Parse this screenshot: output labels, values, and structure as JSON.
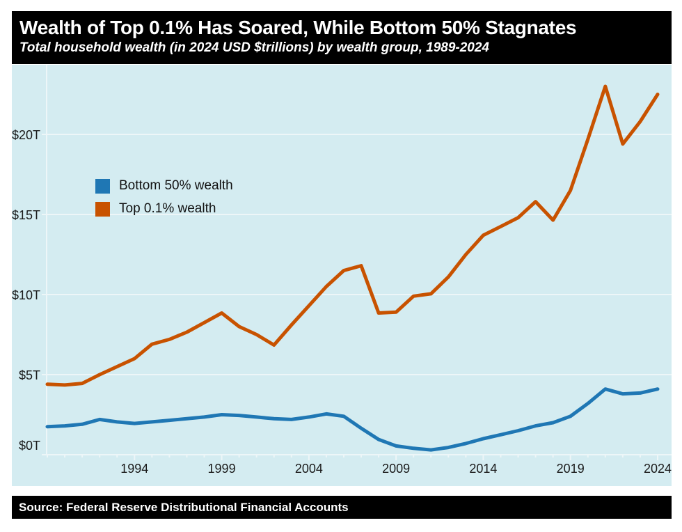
{
  "header": {
    "title": "Wealth of Top 0.1% Has Soared, While Bottom 50% Stagnates",
    "subtitle": "Total household wealth (in 2024 USD $trillions) by wealth group, 1989-2024"
  },
  "footer": {
    "source": "Source: Federal Reserve Distributional Financial Accounts"
  },
  "colors": {
    "header_bg": "#000000",
    "header_text": "#ffffff",
    "plot_bg": "#d4ecf1",
    "gridline": "#edf6f8",
    "tick_text": "#1a1a1a"
  },
  "chart_data": {
    "type": "line",
    "title": "Wealth of Top 0.1% Has Soared, While Bottom 50% Stagnates",
    "subtitle": "Total household wealth (in 2024 USD $trillions) by wealth group, 1989-2024",
    "x": [
      1989,
      1990,
      1991,
      1992,
      1993,
      1994,
      1995,
      1996,
      1997,
      1998,
      1999,
      2000,
      2001,
      2002,
      2003,
      2004,
      2005,
      2006,
      2007,
      2008,
      2009,
      2010,
      2011,
      2012,
      2013,
      2014,
      2015,
      2016,
      2017,
      2018,
      2019,
      2020,
      2021,
      2022,
      2023,
      2024
    ],
    "series": [
      {
        "name": "Bottom 50% wealth",
        "color": "#1f77b4",
        "values": [
          1.75,
          1.8,
          1.9,
          2.2,
          2.05,
          1.95,
          2.05,
          2.15,
          2.25,
          2.35,
          2.5,
          2.45,
          2.35,
          2.25,
          2.2,
          2.35,
          2.55,
          2.4,
          1.65,
          0.95,
          0.55,
          0.4,
          0.3,
          0.45,
          0.7,
          1.0,
          1.25,
          1.5,
          1.8,
          2.0,
          2.4,
          3.2,
          4.1,
          3.8,
          3.85,
          4.1
        ]
      },
      {
        "name": "Top 0.1% wealth",
        "color": "#c85200",
        "values": [
          4.4,
          4.35,
          4.45,
          5.0,
          5.5,
          6.0,
          6.9,
          7.2,
          7.65,
          8.25,
          8.85,
          8.0,
          7.5,
          6.85,
          8.1,
          9.3,
          10.5,
          11.5,
          11.8,
          8.85,
          8.9,
          9.9,
          10.05,
          11.1,
          12.5,
          13.7,
          14.25,
          14.8,
          15.8,
          14.65,
          16.5,
          19.7,
          23.0,
          19.4,
          20.8,
          22.5
        ]
      }
    ],
    "xticks": [
      1994,
      1999,
      2004,
      2009,
      2014,
      2019,
      2024
    ],
    "yticks": [
      0,
      5,
      10,
      15,
      20
    ],
    "ytick_labels": [
      "$0T",
      "$5T",
      "$10T",
      "$15T",
      "$20T"
    ],
    "xlim": [
      1989,
      2024.9
    ],
    "ylim": [
      0,
      24.3
    ],
    "grid": true,
    "legend_position": "upper-left-inside"
  }
}
